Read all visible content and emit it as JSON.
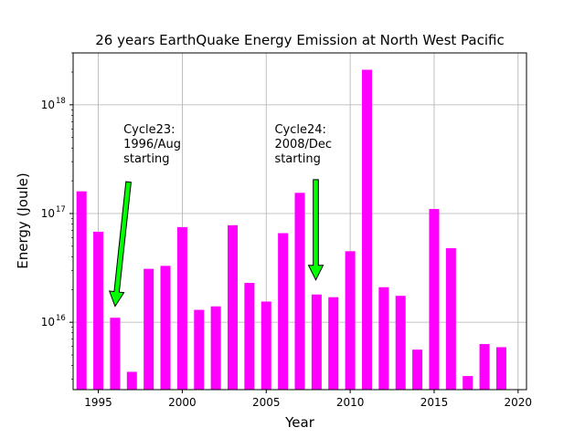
{
  "chart_data": {
    "type": "bar",
    "title": "26 years EarthQuake Energy Emission at North West Pacific",
    "xlabel": "Year",
    "ylabel": "Energy (Joule)",
    "yscale": "log",
    "xlim": [
      1993.5,
      2020.5
    ],
    "ylim": [
      2400000000000000.0,
      3e+18
    ],
    "grid": true,
    "bar_color": "#ff00ff",
    "arrow_color": "#00ff00",
    "x": [
      1994,
      1995,
      1996,
      1997,
      1998,
      1999,
      2000,
      2001,
      2002,
      2003,
      2004,
      2005,
      2006,
      2007,
      2008,
      2009,
      2010,
      2011,
      2012,
      2013,
      2014,
      2015,
      2016,
      2017,
      2018,
      2019
    ],
    "values": [
      1.6e+17,
      6.8e+16,
      1.1e+16,
      3500000000000000.0,
      3.1e+16,
      3.3e+16,
      7.5e+16,
      1.3e+16,
      1.4e+16,
      7.8e+16,
      2.3e+16,
      1.55e+16,
      6.6e+16,
      1.55e+17,
      1.8e+16,
      1.7e+16,
      4.5e+16,
      2.1e+18,
      2.1e+16,
      1.75e+16,
      5600000000000000.0,
      1.1e+17,
      4.8e+16,
      3200000000000000.0,
      6300000000000000.0,
      5900000000000000.0
    ],
    "x_ticks": [
      1995,
      2000,
      2005,
      2010,
      2015,
      2020
    ],
    "x_tick_labels": [
      "1995",
      "2000",
      "2005",
      "2010",
      "2015",
      "2020"
    ],
    "y_ticks": [
      1e+16,
      1e+17,
      1e+18
    ],
    "y_tick_labels": [
      {
        "base": "10",
        "exp": "16"
      },
      {
        "base": "10",
        "exp": "17"
      },
      {
        "base": "10",
        "exp": "18"
      }
    ],
    "annotations": [
      {
        "lines": [
          "Cycle23:",
          "1996/Aug",
          "starting"
        ],
        "text_x": 1996.5,
        "text_y": 5.5e+17,
        "arrow_from": [
          1996.8,
          1.95e+17
        ],
        "arrow_to": [
          1996.0,
          1.4e+16
        ]
      },
      {
        "lines": [
          "Cycle24:",
          "2008/Dec",
          "starting"
        ],
        "text_x": 2005.5,
        "text_y": 5.5e+17,
        "arrow_from": [
          2007.95,
          2.05e+17
        ],
        "arrow_to": [
          2007.95,
          2.45e+16
        ]
      }
    ]
  }
}
